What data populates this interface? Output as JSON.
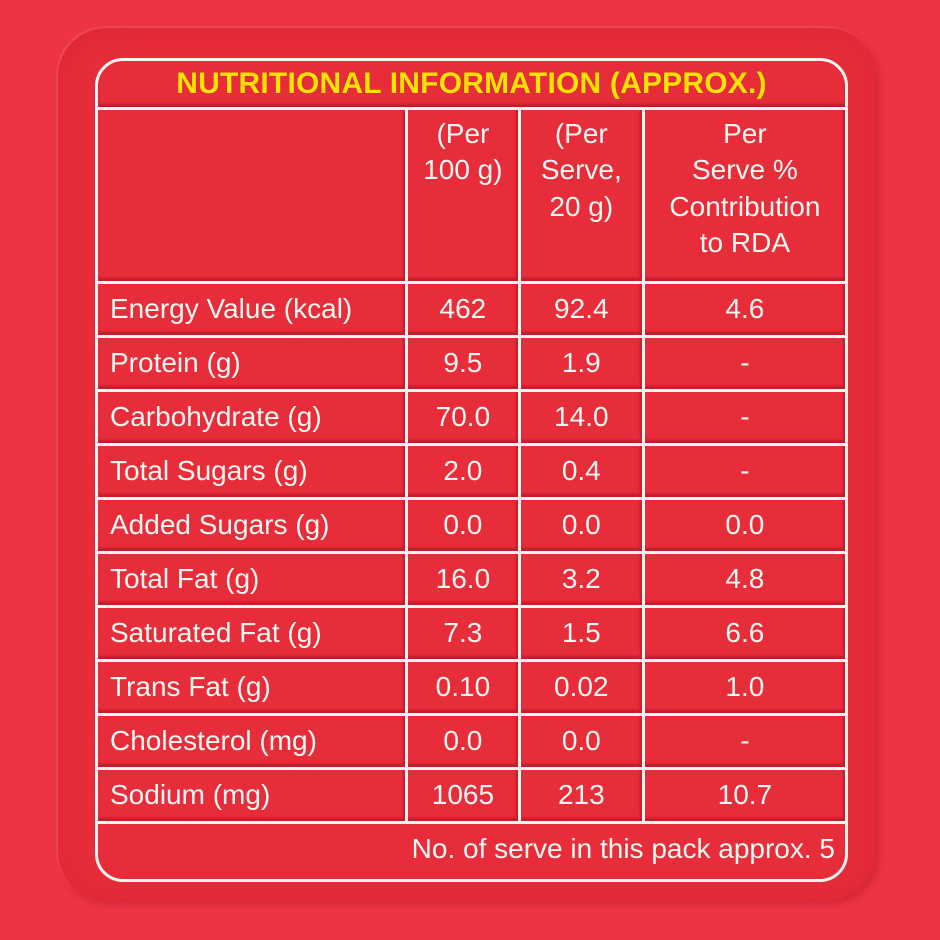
{
  "label": {
    "title": "NUTRITIONAL INFORMATION (APPROX.)",
    "footer": "No. of serve in this pack approx. 5"
  },
  "table": {
    "columns": [
      {
        "name": "nutrient",
        "lines": []
      },
      {
        "name": "per-100g",
        "lines": [
          "(Per",
          "100 g)"
        ]
      },
      {
        "name": "per-serve",
        "lines": [
          "(Per",
          "Serve,",
          "20 g)"
        ]
      },
      {
        "name": "rda",
        "lines": [
          "Per",
          "Serve %",
          "Contribution",
          "to RDA"
        ]
      }
    ],
    "rows": [
      {
        "nutrient": "Energy Value (kcal)",
        "per_100g": "462",
        "per_serve": "92.4",
        "rda": "4.6"
      },
      {
        "nutrient": "Protein (g)",
        "per_100g": "9.5",
        "per_serve": "1.9",
        "rda": "-"
      },
      {
        "nutrient": "Carbohydrate (g)",
        "per_100g": "70.0",
        "per_serve": "14.0",
        "rda": "-"
      },
      {
        "nutrient": "Total Sugars (g)",
        "per_100g": "2.0",
        "per_serve": "0.4",
        "rda": "-"
      },
      {
        "nutrient": "Added Sugars (g)",
        "per_100g": "0.0",
        "per_serve": "0.0",
        "rda": "0.0"
      },
      {
        "nutrient": "Total Fat (g)",
        "per_100g": "16.0",
        "per_serve": "3.2",
        "rda": "4.8"
      },
      {
        "nutrient": "Saturated Fat (g)",
        "per_100g": "7.3",
        "per_serve": "1.5",
        "rda": "6.6"
      },
      {
        "nutrient": "Trans Fat (g)",
        "per_100g": "0.10",
        "per_serve": "0.02",
        "rda": "1.0"
      },
      {
        "nutrient": "Cholesterol (mg)",
        "per_100g": "0.0",
        "per_serve": "0.0",
        "rda": "-"
      },
      {
        "nutrient": "Sodium (mg)",
        "per_100g": "1065",
        "per_serve": "213",
        "rda": "10.7"
      }
    ]
  },
  "colors": {
    "background": "#EE3444",
    "panel_red": "#E72C3A",
    "border_white": "#F8F4EF",
    "title_yellow": "#FFE103",
    "text_white": "#FAF6F1"
  }
}
